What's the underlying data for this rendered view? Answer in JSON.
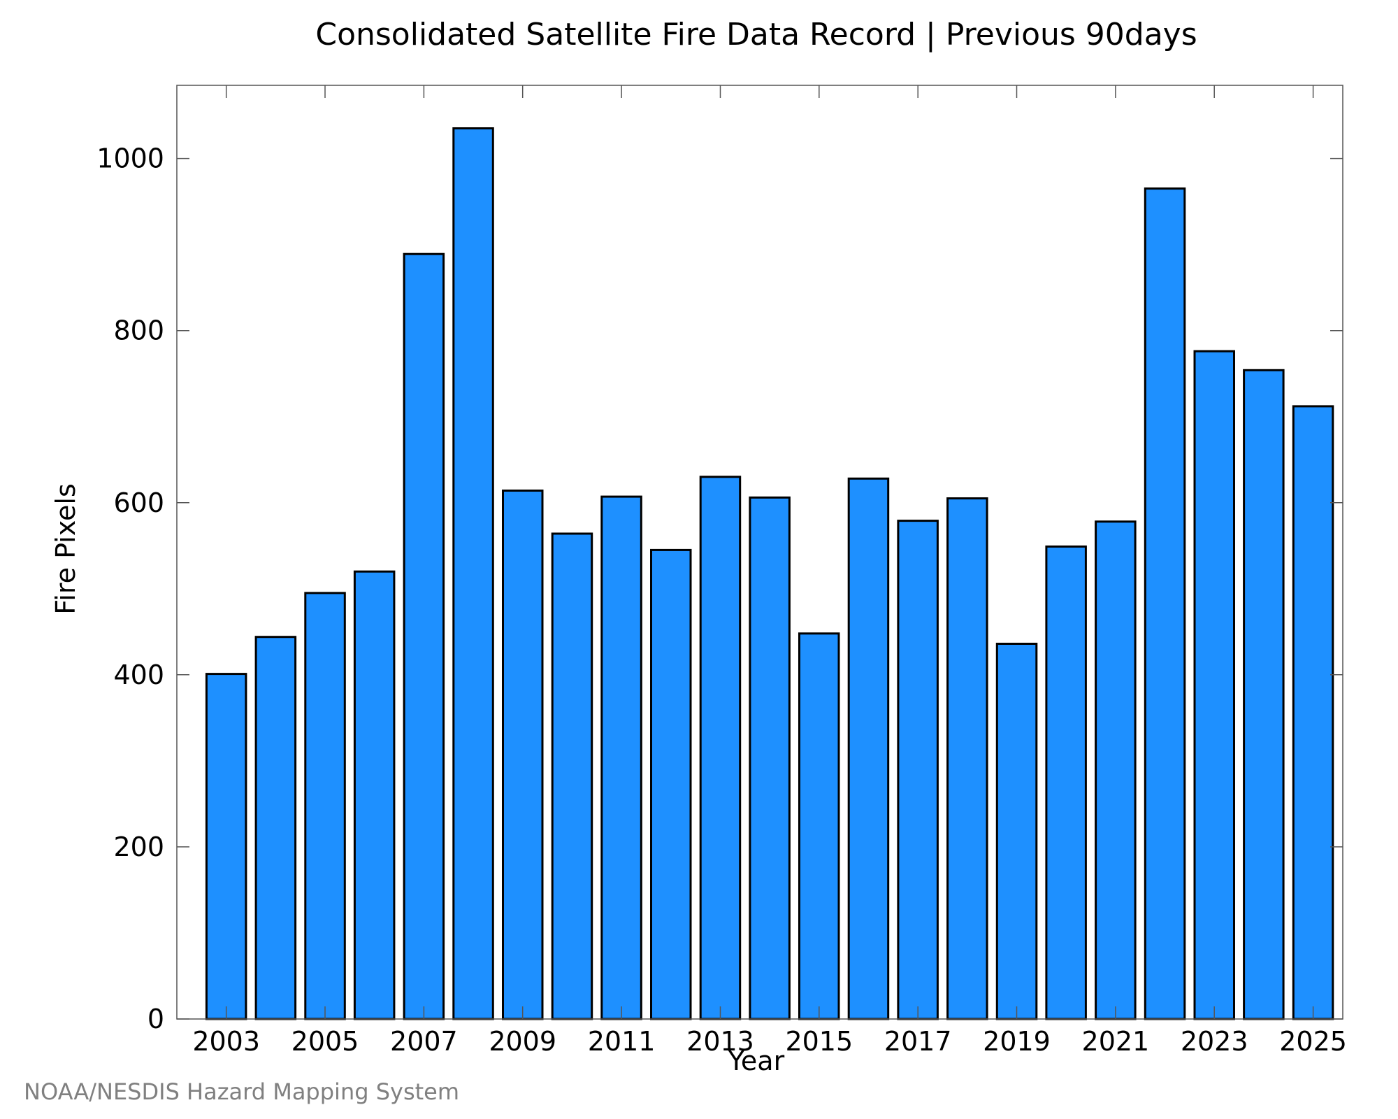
{
  "chart_data": {
    "type": "bar",
    "title": "Consolidated Satellite Fire Data Record | Previous 90days",
    "xlabel": "Year",
    "ylabel": "Fire Pixels",
    "categories": [
      "2003",
      "2004",
      "2005",
      "2006",
      "2007",
      "2008",
      "2009",
      "2010",
      "2011",
      "2012",
      "2013",
      "2014",
      "2015",
      "2016",
      "2017",
      "2018",
      "2019",
      "2020",
      "2021",
      "2022",
      "2023",
      "2024",
      "2025"
    ],
    "values": [
      401,
      444,
      495,
      520,
      889,
      1035,
      614,
      564,
      607,
      545,
      630,
      606,
      448,
      628,
      579,
      605,
      436,
      549,
      578,
      965,
      776,
      754,
      712
    ],
    "x_tick_labels": [
      "2003",
      "2005",
      "2007",
      "2009",
      "2011",
      "2013",
      "2015",
      "2017",
      "2019",
      "2021",
      "2023",
      "2025"
    ],
    "y_ticks": [
      0,
      200,
      400,
      600,
      800,
      1000
    ],
    "ylim": [
      0,
      1085
    ],
    "grid": false,
    "bar_color": "#1e90ff",
    "edge_color": "#000000"
  },
  "credit": "NOAA/NESDIS Hazard Mapping System"
}
